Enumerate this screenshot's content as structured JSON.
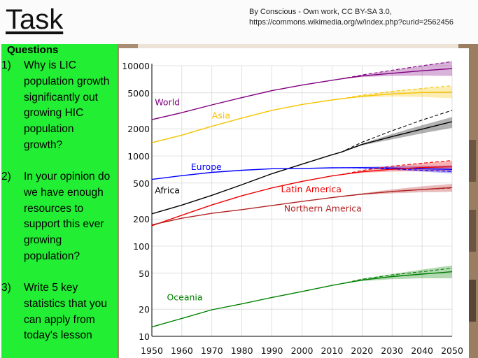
{
  "slide": {
    "title": "Task",
    "credit_line1": "By Conscious - Own work, CC BY-SA 3.0,",
    "credit_line2": "https://commons.wikimedia.org/w/index.php?curid=2562456"
  },
  "questions": {
    "heading": "Questions",
    "items": [
      {
        "num": "1)",
        "text": "Why is LIC population growth significantly out growing HIC population growth?"
      },
      {
        "num": "2)",
        "text": "In your opinion do we have enough resources to support this ever growing population?"
      },
      {
        "num": "3)",
        "text": "Write 5 key statistics that you can apply from today's lesson"
      }
    ]
  },
  "chart_data": {
    "type": "line",
    "title": "",
    "xlabel": "",
    "ylabel": "",
    "yscale": "log",
    "xlim": [
      1950,
      2050
    ],
    "ylim": [
      10,
      10000
    ],
    "xticks": [
      1950,
      1960,
      1970,
      1980,
      1990,
      2000,
      2010,
      2020,
      2030,
      2040,
      2050
    ],
    "yticks": [
      10,
      20,
      50,
      100,
      200,
      500,
      1000,
      2000,
      5000,
      10000
    ],
    "grid": true,
    "series": [
      {
        "name": "World",
        "color": "#800080",
        "x": [
          1950,
          1960,
          1970,
          1980,
          1990,
          2000,
          2010,
          2013
        ],
        "y": [
          2525,
          3020,
          3680,
          4430,
          5300,
          6100,
          6900,
          7150
        ],
        "proj_x": [
          2013,
          2020,
          2030,
          2040,
          2050
        ],
        "proj_median": [
          7150,
          7700,
          8250,
          8800,
          9300
        ],
        "proj_low": [
          7150,
          7500,
          7700,
          7750,
          7700
        ],
        "proj_high": [
          7150,
          7900,
          8900,
          10000,
          11200
        ],
        "proj_const": [
          7150,
          7900,
          8900,
          10000,
          11100
        ]
      },
      {
        "name": "Asia",
        "color": "#f5c400",
        "x": [
          1950,
          1960,
          1970,
          1980,
          1990,
          2000,
          2010,
          2013
        ],
        "y": [
          1400,
          1700,
          2130,
          2630,
          3200,
          3720,
          4170,
          4300
        ],
        "proj_x": [
          2013,
          2020,
          2030,
          2040,
          2050
        ],
        "proj_median": [
          4300,
          4580,
          4870,
          5050,
          5100
        ],
        "proj_low": [
          4300,
          4450,
          4550,
          4500,
          4350
        ],
        "proj_high": [
          4300,
          4700,
          5200,
          5600,
          5900
        ],
        "proj_const": [
          4300,
          4700,
          5200,
          5600,
          6000
        ]
      },
      {
        "name": "Africa",
        "color": "#000000",
        "x": [
          1950,
          1960,
          1970,
          1980,
          1990,
          2000,
          2010,
          2013
        ],
        "y": [
          228,
          285,
          366,
          480,
          635,
          810,
          1030,
          1100
        ],
        "proj_x": [
          2013,
          2020,
          2030,
          2040,
          2050
        ],
        "proj_median": [
          1100,
          1340,
          1640,
          1980,
          2400
        ],
        "proj_low": [
          1100,
          1310,
          1530,
          1780,
          2050
        ],
        "proj_high": [
          1100,
          1370,
          1750,
          2190,
          2700
        ],
        "proj_const": [
          1100,
          1420,
          1900,
          2500,
          3200
        ]
      },
      {
        "name": "Europe",
        "color": "#0000ff",
        "x": [
          1950,
          1960,
          1970,
          1980,
          1990,
          2000,
          2010,
          2013
        ],
        "y": [
          549,
          605,
          657,
          694,
          721,
          727,
          738,
          740
        ],
        "proj_x": [
          2013,
          2020,
          2030,
          2040,
          2050
        ],
        "proj_median": [
          740,
          741,
          734,
          721,
          709
        ],
        "proj_low": [
          740,
          725,
          700,
          670,
          640
        ],
        "proj_high": [
          740,
          755,
          770,
          775,
          785
        ],
        "proj_const": [
          740,
          735,
          715,
          695,
          670
        ]
      },
      {
        "name": "Latin America",
        "color": "#ee0000",
        "x": [
          1950,
          1960,
          1970,
          1980,
          1990,
          2000,
          2010,
          2013
        ],
        "y": [
          168,
          220,
          286,
          362,
          442,
          522,
          600,
          620
        ],
        "proj_x": [
          2013,
          2020,
          2030,
          2040,
          2050
        ],
        "proj_median": [
          620,
          667,
          711,
          744,
          760
        ],
        "proj_low": [
          620,
          650,
          670,
          680,
          670
        ],
        "proj_high": [
          620,
          685,
          760,
          830,
          880
        ],
        "proj_const": [
          620,
          690,
          770,
          830,
          890
        ]
      },
      {
        "name": "Northern America",
        "color": "#b22222",
        "x": [
          1950,
          1960,
          1970,
          1980,
          1990,
          2000,
          2010,
          2013
        ],
        "y": [
          172,
          204,
          231,
          254,
          282,
          313,
          345,
          355
        ],
        "proj_x": [
          2013,
          2020,
          2030,
          2040,
          2050
        ],
        "proj_median": [
          355,
          377,
          404,
          424,
          446
        ],
        "proj_low": [
          355,
          370,
          385,
          395,
          400
        ],
        "proj_high": [
          355,
          385,
          425,
          460,
          490
        ],
        "proj_const": [
          355,
          378,
          402,
          424,
          440
        ]
      },
      {
        "name": "Oceania",
        "color": "#008000",
        "x": [
          1950,
          1960,
          1970,
          1980,
          1990,
          2000,
          2010,
          2013
        ],
        "y": [
          12.7,
          15.8,
          19.7,
          22.9,
          27.0,
          31.4,
          36.7,
          38.3
        ],
        "proj_x": [
          2013,
          2020,
          2030,
          2040,
          2050
        ],
        "proj_median": [
          38.3,
          42.0,
          46.0,
          49.0,
          52.0
        ],
        "proj_low": [
          38.3,
          41.0,
          43.0,
          44.0,
          44.0
        ],
        "proj_high": [
          38.3,
          43.5,
          49.0,
          55.0,
          61.0
        ],
        "proj_const": [
          38.3,
          43.0,
          48.0,
          52.0,
          57.0
        ]
      }
    ],
    "labels": [
      {
        "text": "World",
        "series": "World",
        "x": 1951,
        "y": 3650
      },
      {
        "text": "Asia",
        "series": "Asia",
        "x": 1970,
        "y": 2600
      },
      {
        "text": "Europe",
        "series": "Europe",
        "x": 1963,
        "y": 700
      },
      {
        "text": "Africa",
        "series": "Africa",
        "x": 1951,
        "y": 385
      },
      {
        "text": "Latin America",
        "series": "Latin America",
        "x": 1993,
        "y": 395
      },
      {
        "text": "Northern America",
        "series": "Northern America",
        "x": 1994,
        "y": 242
      },
      {
        "text": "Oceania",
        "series": "Oceania",
        "x": 1955,
        "y": 25
      }
    ]
  },
  "theme": {
    "panel_green": "#22ee33",
    "background": "#fbfbfb"
  }
}
